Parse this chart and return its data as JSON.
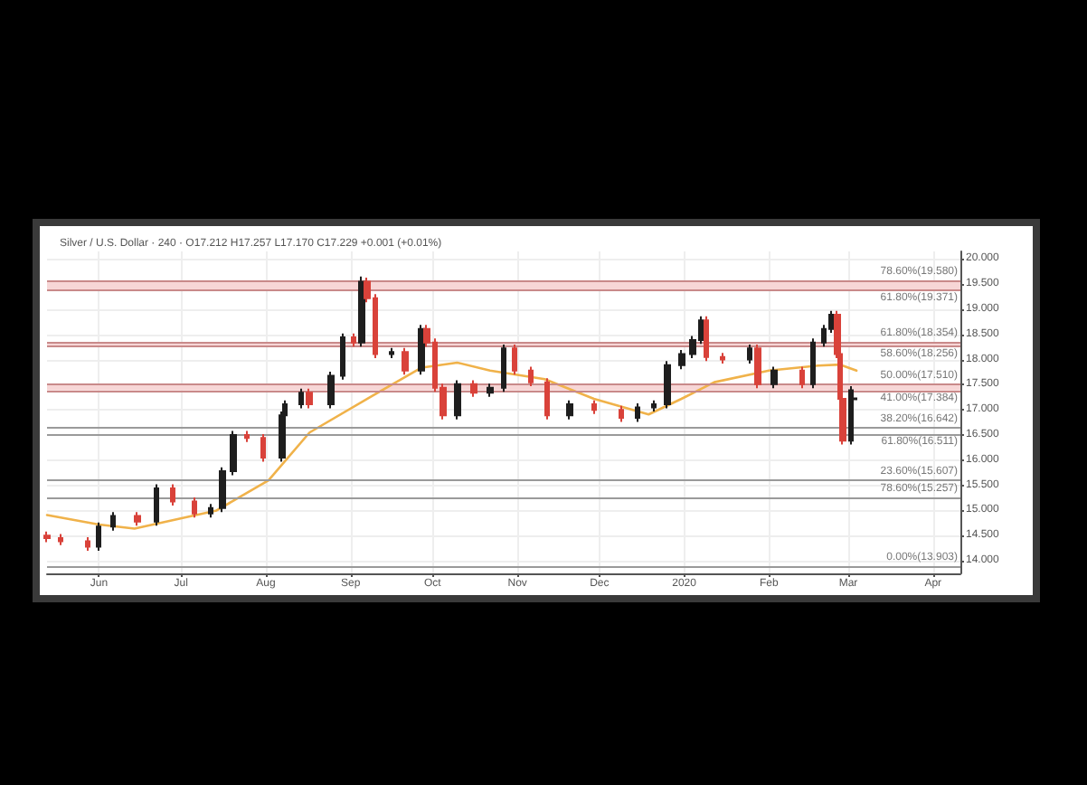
{
  "chart_data": {
    "type": "candlestick",
    "title": "Silver / U.S. Dollar · 240 · O17.212 H17.257 L17.170 C17.229 +0.001 (+0.01%)",
    "series": [
      {
        "x": [
          "2019-05-13",
          "2019-05-18",
          "2019-05-28",
          "2019-06-01",
          "2019-06-06",
          "2019-06-15",
          "2019-06-22",
          "2019-06-28",
          "2019-07-06",
          "2019-07-12",
          "2019-07-16",
          "2019-07-20",
          "2019-07-25",
          "2019-07-31",
          "2019-08-07",
          "2019-08-08",
          "2019-08-14",
          "2019-08-17",
          "2019-08-25",
          "2019-08-29",
          "2019-09-02",
          "2019-09-05",
          "2019-09-07",
          "2019-09-10",
          "2019-09-16",
          "2019-09-21",
          "2019-09-27",
          "2019-09-29",
          "2019-10-02",
          "2019-10-05",
          "2019-10-10",
          "2019-10-16",
          "2019-10-22",
          "2019-10-27",
          "2019-10-31",
          "2019-11-06",
          "2019-11-12",
          "2019-11-20",
          "2019-11-29",
          "2019-12-09",
          "2019-12-15",
          "2019-12-21",
          "2019-12-26",
          "2019-12-31",
          "2020-01-04",
          "2020-01-07",
          "2020-01-09",
          "2020-01-15",
          "2020-01-25",
          "2020-01-28",
          "2020-02-03",
          "2020-02-13",
          "2020-02-17",
          "2020-02-21",
          "2020-02-24",
          "2020-02-26",
          "2020-02-27",
          "2020-02-28",
          "2020-03-02",
          "2020-03-03"
        ],
        "ohlc": [
          [
            14.5,
            14.58,
            14.37,
            14.45
          ],
          [
            14.45,
            14.53,
            14.31,
            14.39
          ],
          [
            14.39,
            14.47,
            14.2,
            14.28
          ],
          [
            14.28,
            14.76,
            14.2,
            14.68
          ],
          [
            14.68,
            14.97,
            14.6,
            14.89
          ],
          [
            14.89,
            14.97,
            14.7,
            14.78
          ],
          [
            14.78,
            15.52,
            14.7,
            15.44
          ],
          [
            15.44,
            15.52,
            15.1,
            15.18
          ],
          [
            15.18,
            15.26,
            14.86,
            14.94
          ],
          [
            14.94,
            15.13,
            14.86,
            15.05
          ],
          [
            15.05,
            15.86,
            14.97,
            15.78
          ],
          [
            15.78,
            16.58,
            15.7,
            16.5
          ],
          [
            16.5,
            16.58,
            16.36,
            16.44
          ],
          [
            16.44,
            16.52,
            15.97,
            16.05
          ],
          [
            16.05,
            16.97,
            15.97,
            16.89
          ],
          [
            16.89,
            17.19,
            16.81,
            17.11
          ],
          [
            17.11,
            17.42,
            17.03,
            17.34
          ],
          [
            17.34,
            17.42,
            17.03,
            17.11
          ],
          [
            17.11,
            17.76,
            17.03,
            17.68
          ],
          [
            17.68,
            18.52,
            17.6,
            18.44
          ],
          [
            18.44,
            18.52,
            18.26,
            18.34
          ],
          [
            18.34,
            19.65,
            18.26,
            19.55
          ],
          [
            19.55,
            19.63,
            19.14,
            19.22
          ],
          [
            19.22,
            19.3,
            18.03,
            18.11
          ],
          [
            18.11,
            18.23,
            18.03,
            18.15
          ],
          [
            18.15,
            18.23,
            17.7,
            17.78
          ],
          [
            17.78,
            18.69,
            17.7,
            18.61
          ],
          [
            18.61,
            18.69,
            18.26,
            18.34
          ],
          [
            18.34,
            18.42,
            17.36,
            17.44
          ],
          [
            17.44,
            17.52,
            16.81,
            16.89
          ],
          [
            16.89,
            17.59,
            16.81,
            17.51
          ],
          [
            17.51,
            17.59,
            17.26,
            17.34
          ],
          [
            17.34,
            17.52,
            17.26,
            17.44
          ],
          [
            17.44,
            18.3,
            17.36,
            18.22
          ],
          [
            18.22,
            18.3,
            17.7,
            17.78
          ],
          [
            17.78,
            17.86,
            17.47,
            17.55
          ],
          [
            17.55,
            17.63,
            16.81,
            16.89
          ],
          [
            16.89,
            17.19,
            16.81,
            17.11
          ],
          [
            17.11,
            17.19,
            16.92,
            17.0
          ],
          [
            17.0,
            17.08,
            16.76,
            16.84
          ],
          [
            16.84,
            17.13,
            16.76,
            17.05
          ],
          [
            17.05,
            17.19,
            16.97,
            17.11
          ],
          [
            17.11,
            17.97,
            17.03,
            17.89
          ],
          [
            17.89,
            18.19,
            17.81,
            18.11
          ],
          [
            18.11,
            18.47,
            18.03,
            18.39
          ],
          [
            18.39,
            18.86,
            18.31,
            18.78
          ],
          [
            18.78,
            18.86,
            17.97,
            18.05
          ],
          [
            18.05,
            18.13,
            17.92,
            18.0
          ],
          [
            18.0,
            18.3,
            17.92,
            18.22
          ],
          [
            18.22,
            18.3,
            17.43,
            17.51
          ],
          [
            17.51,
            17.86,
            17.43,
            17.78
          ],
          [
            17.78,
            17.86,
            17.43,
            17.51
          ],
          [
            17.51,
            18.42,
            17.43,
            18.34
          ],
          [
            18.34,
            18.69,
            18.26,
            18.61
          ],
          [
            18.61,
            18.97,
            18.53,
            18.89
          ],
          [
            18.89,
            18.97,
            18.03,
            18.11
          ],
          [
            18.11,
            18.19,
            17.14,
            17.22
          ],
          [
            17.22,
            17.3,
            16.31,
            16.39
          ],
          [
            16.39,
            17.47,
            16.31,
            17.39
          ],
          [
            17.212,
            17.257,
            17.17,
            17.229
          ]
        ],
        "colors": [
          "#d9423a",
          "#d9423a",
          "#d9423a",
          "#1e1e1e",
          "#1e1e1e",
          "#d9423a",
          "#1e1e1e",
          "#d9423a",
          "#d9423a",
          "#1e1e1e",
          "#1e1e1e",
          "#1e1e1e",
          "#d9423a",
          "#d9423a",
          "#1e1e1e",
          "#1e1e1e",
          "#1e1e1e",
          "#d9423a",
          "#1e1e1e",
          "#1e1e1e",
          "#d9423a",
          "#1e1e1e",
          "#d9423a",
          "#d9423a",
          "#1e1e1e",
          "#d9423a",
          "#1e1e1e",
          "#d9423a",
          "#d9423a",
          "#d9423a",
          "#1e1e1e",
          "#d9423a",
          "#1e1e1e",
          "#1e1e1e",
          "#d9423a",
          "#d9423a",
          "#d9423a",
          "#1e1e1e",
          "#d9423a",
          "#d9423a",
          "#1e1e1e",
          "#1e1e1e",
          "#1e1e1e",
          "#1e1e1e",
          "#1e1e1e",
          "#1e1e1e",
          "#d9423a",
          "#d9423a",
          "#1e1e1e",
          "#d9423a",
          "#1e1e1e",
          "#d9423a",
          "#1e1e1e",
          "#1e1e1e",
          "#1e1e1e",
          "#d9423a",
          "#d9423a",
          "#d9423a",
          "#1e1e1e",
          "#1e1e1e"
        ]
      },
      {
        "type": "line",
        "color": "#f0b24a",
        "x": [
          "2019-05-13",
          "2019-06-01",
          "2019-06-14",
          "2019-07-14",
          "2019-08-02",
          "2019-08-17",
          "2019-09-09",
          "2019-09-27",
          "2019-10-10",
          "2019-10-22",
          "2019-11-11",
          "2019-11-29",
          "2019-12-19",
          "2019-12-31",
          "2020-01-12",
          "2020-02-01",
          "2020-02-19",
          "2020-02-27",
          "2020-03-04"
        ],
        "values": [
          14.91,
          14.72,
          14.64,
          15.0,
          15.6,
          16.55,
          17.28,
          17.84,
          17.94,
          17.78,
          17.61,
          17.22,
          16.91,
          17.22,
          17.55,
          17.78,
          17.88,
          17.9,
          17.78
        ]
      }
    ],
    "xlim": [
      "2019-05-13",
      "2020-04-11"
    ],
    "xticks": [
      {
        "value": "2019-06-01",
        "label": "Jun"
      },
      {
        "value": "2019-07-01",
        "label": "Jul"
      },
      {
        "value": "2019-08-01",
        "label": "Aug"
      },
      {
        "value": "2019-09-01",
        "label": "Sep"
      },
      {
        "value": "2019-10-01",
        "label": "Oct"
      },
      {
        "value": "2019-11-01",
        "label": "Nov"
      },
      {
        "value": "2019-12-01",
        "label": "Dec"
      },
      {
        "value": "2020-01-01",
        "label": "2020"
      },
      {
        "value": "2020-02-01",
        "label": "Feb"
      },
      {
        "value": "2020-03-01",
        "label": "Mar"
      },
      {
        "value": "2020-04-01",
        "label": "Apr"
      }
    ],
    "ylim": [
      13.75,
      20.15
    ],
    "yticks": [
      {
        "value": 14,
        "label": "14.000"
      },
      {
        "value": 14.5,
        "label": "14.500"
      },
      {
        "value": 15,
        "label": "15.000"
      },
      {
        "value": 15.5,
        "label": "15.500"
      },
      {
        "value": 16,
        "label": "16.000"
      },
      {
        "value": 16.5,
        "label": "16.500"
      },
      {
        "value": 17,
        "label": "17.000"
      },
      {
        "value": 17.5,
        "label": "17.500"
      },
      {
        "value": 18,
        "label": "18.000"
      },
      {
        "value": 18.5,
        "label": "18.500"
      },
      {
        "value": 19,
        "label": "19.000"
      },
      {
        "value": 19.5,
        "label": "19.500"
      },
      {
        "value": 20,
        "label": "20.000"
      }
    ],
    "grid": true,
    "ref_lines": [
      {
        "axis": "y",
        "value": 19.58,
        "label": "78.60%(19.580)",
        "color": "#c98a8a"
      },
      {
        "axis": "y",
        "value": 19.371,
        "label": "61.80%(19.371)",
        "color": "#c98a8a"
      },
      {
        "axis": "y",
        "value": 18.354,
        "label": "61.80%(18.354)",
        "color": "#c98a8a"
      },
      {
        "axis": "y",
        "value": 18.256,
        "label": "58.60%(18.256)",
        "color": "#c98a8a"
      },
      {
        "axis": "y",
        "value": 17.51,
        "label": "50.00%(17.510)",
        "color": "#c98a8a"
      },
      {
        "axis": "y",
        "value": 17.384,
        "label": "41.00%(17.384)",
        "color": "#c98a8a"
      },
      {
        "axis": "y",
        "value": 16.642,
        "label": "38.20%(16.642)",
        "color": "#9a9a9a"
      },
      {
        "axis": "y",
        "value": 16.511,
        "label": "61.80%(16.511)",
        "color": "#9a9a9a"
      },
      {
        "axis": "y",
        "value": 15.607,
        "label": "23.60%(15.607)",
        "color": "#9a9a9a"
      },
      {
        "axis": "y",
        "value": 15.257,
        "label": "78.60%(15.257)",
        "color": "#9a9a9a"
      },
      {
        "axis": "y",
        "value": 13.903,
        "label": "0.00%(13.903)",
        "color": "#9a9a9a"
      }
    ],
    "bands": [
      {
        "axis": "y",
        "from": 19.371,
        "to": 19.58,
        "color": "#f7d6d6"
      },
      {
        "axis": "y",
        "from": 18.256,
        "to": 18.354,
        "color": "#f7d6d6"
      },
      {
        "axis": "y",
        "from": 17.384,
        "to": 17.51,
        "color": "#f7d6d6"
      }
    ]
  }
}
